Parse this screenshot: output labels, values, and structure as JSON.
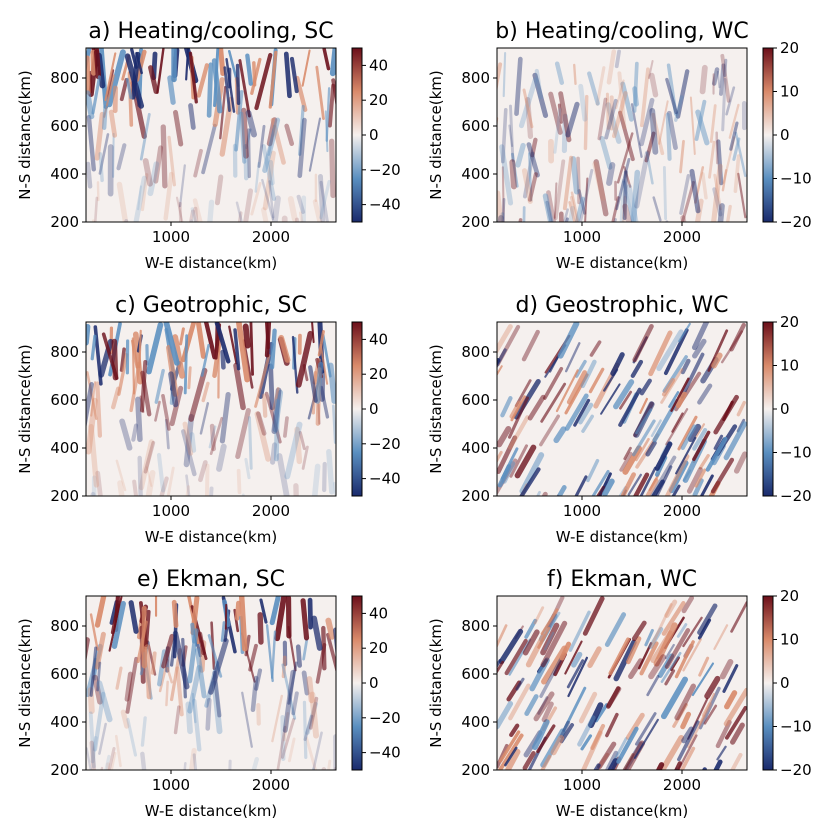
{
  "chart_data": [
    {
      "type": "heatmap",
      "title": "a) Heating/cooling, SC",
      "xlabel": "W-E distance(km)",
      "ylabel": "N-S distance(km)",
      "xlim": [
        150,
        2650
      ],
      "ylim": [
        200,
        925
      ],
      "xticks": [
        1000,
        2000
      ],
      "yticks": [
        200,
        400,
        600,
        800
      ],
      "colorbar": {
        "vmin": -50,
        "vmax": 50,
        "ticks": [
          40,
          20,
          0,
          -20,
          -40
        ],
        "tick_labels": [
          "40",
          "20",
          "0",
          "−20",
          "−40"
        ]
      },
      "colormap": "balance",
      "description_pattern": "intense alternating bands in northern region, weak elsewhere"
    },
    {
      "type": "heatmap",
      "title": "b) Heating/cooling, WC",
      "xlabel": "W-E distance(km)",
      "ylabel": "N-S distance(km)",
      "xlim": [
        150,
        2650
      ],
      "ylim": [
        200,
        925
      ],
      "xticks": [
        1000,
        2000
      ],
      "yticks": [
        200,
        400,
        600,
        800
      ],
      "colorbar": {
        "vmin": -20,
        "vmax": 20,
        "ticks": [
          20,
          10,
          0,
          -10,
          -20
        ],
        "tick_labels": [
          "20",
          "10",
          "0",
          "−10",
          "−20"
        ]
      },
      "colormap": "balance"
    },
    {
      "type": "heatmap",
      "title": "c) Geotrophic, SC",
      "xlabel": "W-E distance(km)",
      "ylabel": "N-S distance(km)",
      "xlim": [
        150,
        2650
      ],
      "ylim": [
        200,
        925
      ],
      "xticks": [
        1000,
        2000
      ],
      "yticks": [
        200,
        400,
        600,
        800
      ],
      "colorbar": {
        "vmin": -50,
        "vmax": 50,
        "ticks": [
          40,
          20,
          0,
          -20,
          -40
        ],
        "tick_labels": [
          "40",
          "20",
          "0",
          "−20",
          "−40"
        ]
      },
      "colormap": "balance"
    },
    {
      "type": "heatmap",
      "title": "d) Geostrophic, WC",
      "xlabel": "W-E distance(km)",
      "ylabel": "N-S distance(km)",
      "xlim": [
        150,
        2650
      ],
      "ylim": [
        200,
        925
      ],
      "xticks": [
        1000,
        2000
      ],
      "yticks": [
        200,
        400,
        600,
        800
      ],
      "colorbar": {
        "vmin": -20,
        "vmax": 20,
        "ticks": [
          20,
          10,
          0,
          -10,
          -20
        ],
        "tick_labels": [
          "20",
          "10",
          "0",
          "−10",
          "−20"
        ]
      },
      "colormap": "balance"
    },
    {
      "type": "heatmap",
      "title": "e) Ekman, SC",
      "xlabel": "W-E distance(km)",
      "ylabel": "N-S distance(km)",
      "xlim": [
        150,
        2650
      ],
      "ylim": [
        200,
        925
      ],
      "xticks": [
        1000,
        2000
      ],
      "yticks": [
        200,
        400,
        600,
        800
      ],
      "colorbar": {
        "vmin": -50,
        "vmax": 50,
        "ticks": [
          40,
          20,
          0,
          -20,
          -40
        ],
        "tick_labels": [
          "40",
          "20",
          "0",
          "−20",
          "−40"
        ]
      },
      "colormap": "balance"
    },
    {
      "type": "heatmap",
      "title": "f) Ekman, WC",
      "xlabel": "W-E distance(km)",
      "ylabel": "N-S distance(km)",
      "xlim": [
        150,
        2650
      ],
      "ylim": [
        200,
        925
      ],
      "xticks": [
        1000,
        2000
      ],
      "yticks": [
        200,
        400,
        600,
        800
      ],
      "colorbar": {
        "vmin": -20,
        "vmax": 20,
        "ticks": [
          20,
          10,
          0,
          -10,
          -20
        ],
        "tick_labels": [
          "20",
          "10",
          "0",
          "−10",
          "−20"
        ]
      },
      "colormap": "balance"
    }
  ],
  "colors": {
    "map_low": "#1a2a6c",
    "map_mid_low": "#5a8fc0",
    "map_center": "#f5f0ee",
    "map_mid_high": "#d98a6a",
    "map_high": "#6b0f1a"
  }
}
